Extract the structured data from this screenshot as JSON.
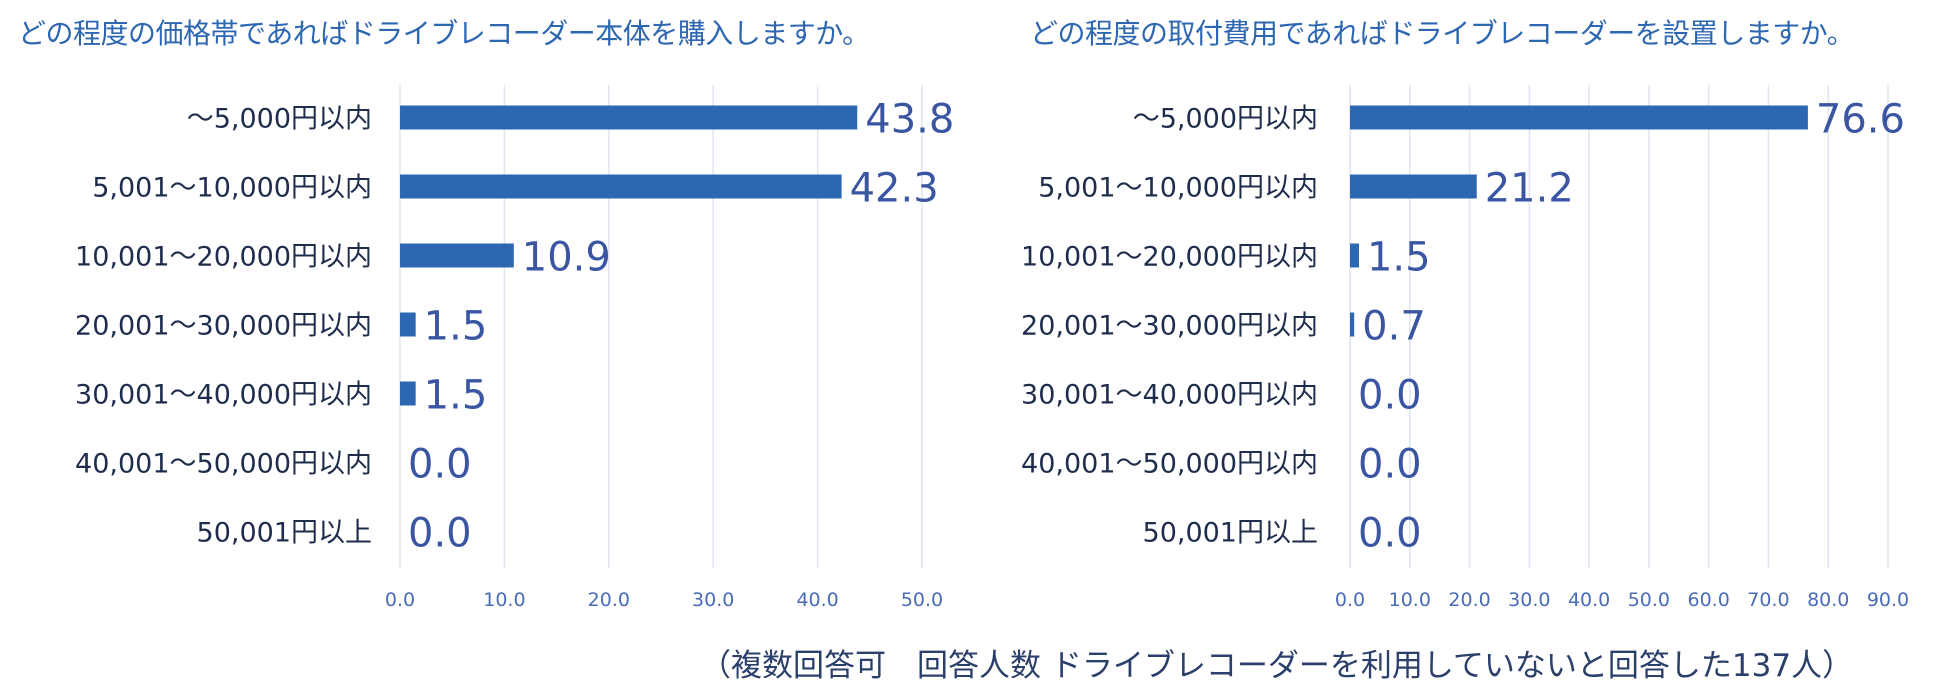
{
  "chart_data": [
    {
      "type": "bar",
      "orientation": "horizontal",
      "title": "どの程度の価格帯であればドライブレコーダー本体を購入しますか。",
      "categories": [
        "～5,000円以内",
        "5,001～10,000円以内",
        "10,001～20,000円以内",
        "20,001～30,000円以内",
        "30,001～40,000円以内",
        "40,001～50,000円以内",
        "50,001円以上"
      ],
      "values": [
        43.8,
        42.3,
        10.9,
        1.5,
        1.5,
        0.0,
        0.0
      ],
      "value_labels": [
        "43.8",
        "42.3",
        "10.9",
        "1.5",
        "1.5",
        "0.0",
        "0.0"
      ],
      "xlim": [
        0,
        50
      ],
      "xticks": [
        "0.0",
        "10.0",
        "20.0",
        "30.0",
        "40.0",
        "50.0"
      ],
      "grid": true,
      "bar_color": "#2e67b1"
    },
    {
      "type": "bar",
      "orientation": "horizontal",
      "title": "どの程度の取付費用であればドライブレコーダーを設置しますか。",
      "categories": [
        "～5,000円以内",
        "5,001～10,000円以内",
        "10,001～20,000円以内",
        "20,001～30,000円以内",
        "30,001～40,000円以内",
        "40,001～50,000円以内",
        "50,001円以上"
      ],
      "values": [
        76.6,
        21.2,
        1.5,
        0.7,
        0.0,
        0.0,
        0.0
      ],
      "value_labels": [
        "76.6",
        "21.2",
        "1.5",
        "0.7",
        "0.0",
        "0.0",
        "0.0"
      ],
      "xlim": [
        0,
        90
      ],
      "xticks": [
        "0.0",
        "10.0",
        "20.0",
        "30.0",
        "40.0",
        "50.0",
        "60.0",
        "70.0",
        "80.0",
        "90.0"
      ],
      "grid": true,
      "bar_color": "#2e67b1"
    }
  ],
  "footnote": "（複数回答可　回答人数 ドライブレコーダーを利用していないと回答した137人）",
  "colors": {
    "title": "#2e67b1",
    "category_label": "#1f2d4d",
    "value_label": "#3a56a3",
    "tick_label": "#4a6cb5",
    "grid": "#dfe6f1"
  }
}
